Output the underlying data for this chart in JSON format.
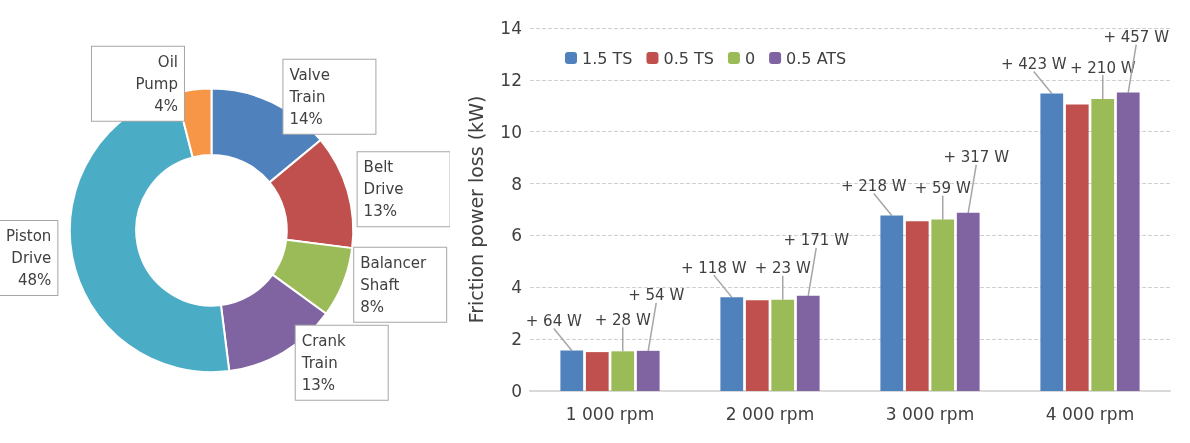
{
  "chart_data": [
    {
      "type": "donut",
      "categories": [
        "Valve Train",
        "Belt Drive",
        "Balancer Shaft",
        "Crank Train",
        "Piston Drive",
        "Oil Pump"
      ],
      "values": [
        14,
        13,
        8,
        13,
        48,
        4
      ],
      "colors": [
        "#4f81bd",
        "#c0504d",
        "#9bbb59",
        "#8064a2",
        "#4bacc6",
        "#f79646"
      ],
      "value_labels": [
        "14%",
        "13%",
        "8%",
        "13%",
        "48%",
        "4%"
      ]
    },
    {
      "type": "bar",
      "ylabel": "Friction power loss (kW)",
      "categories": [
        "1 000 rpm",
        "2 000 rpm",
        "3 000 rpm",
        "4 000 rpm"
      ],
      "series": [
        {
          "name": "1.5 TS",
          "color": "#4f81bd",
          "values": [
            1.56,
            3.62,
            6.77,
            11.47
          ]
        },
        {
          "name": "0.5 TS",
          "color": "#c0504d",
          "values": [
            1.5,
            3.5,
            6.55,
            11.05
          ]
        },
        {
          "name": "0",
          "color": "#9bbb59",
          "values": [
            1.53,
            3.52,
            6.61,
            11.26
          ]
        },
        {
          "name": "0.5 ATS",
          "color": "#8064a2",
          "values": [
            1.55,
            3.67,
            6.87,
            11.51
          ]
        }
      ],
      "ylim": [
        0,
        14
      ],
      "yticks": [
        0,
        2,
        4,
        6,
        8,
        10,
        12,
        14
      ],
      "grid": "y",
      "legend": "top left",
      "annotations": [
        "+ 64 W",
        "+ 28 W",
        "+ 54 W",
        "+ 118 W",
        "+ 23 W",
        "+ 171 W",
        "+ 218 W",
        "+ 59 W",
        "+ 317 W",
        "+ 423 W",
        "+ 210 W",
        "+ 457 W"
      ]
    }
  ]
}
